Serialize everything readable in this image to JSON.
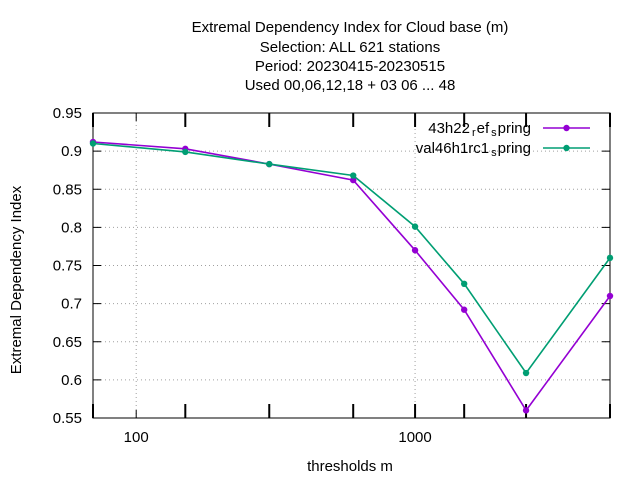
{
  "chart_data": {
    "type": "line",
    "title": [
      "Extremal Dependency Index  for Cloud base (m)",
      "Selection: ALL     621 stations",
      "Period: 20230415-20230515",
      "Used  00,06,12,18  + 03 06 ... 48"
    ],
    "xlabel": "thresholds m",
    "ylabel": "Extremal Dependency Index",
    "xscale": "log",
    "xlim": [
      70,
      5000
    ],
    "ylim": [
      0.55,
      0.95
    ],
    "x_tick_labels": [
      "100",
      "1000"
    ],
    "y_tick_labels": [
      "0.55",
      "0.6",
      "0.65",
      "0.7",
      "0.75",
      "0.8",
      "0.85",
      "0.9",
      "0.95"
    ],
    "grid": true,
    "legend_position": "top-right",
    "x": [
      70,
      150,
      300,
      600,
      1000,
      1500,
      2500,
      5000
    ],
    "series": [
      {
        "name": "43h22_ref_spring",
        "legend_parts": [
          "43h22",
          "r",
          "ef",
          "s",
          "pring"
        ],
        "color": "#9400d3",
        "values": [
          0.912,
          0.903,
          0.883,
          0.862,
          0.77,
          0.692,
          0.56,
          0.71
        ]
      },
      {
        "name": "val46h1rc1_spring",
        "legend_parts": [
          "val46h1rc1",
          "s",
          "pring"
        ],
        "color": "#009e73",
        "values": [
          0.91,
          0.899,
          0.883,
          0.868,
          0.801,
          0.726,
          0.609,
          0.76
        ]
      }
    ]
  }
}
